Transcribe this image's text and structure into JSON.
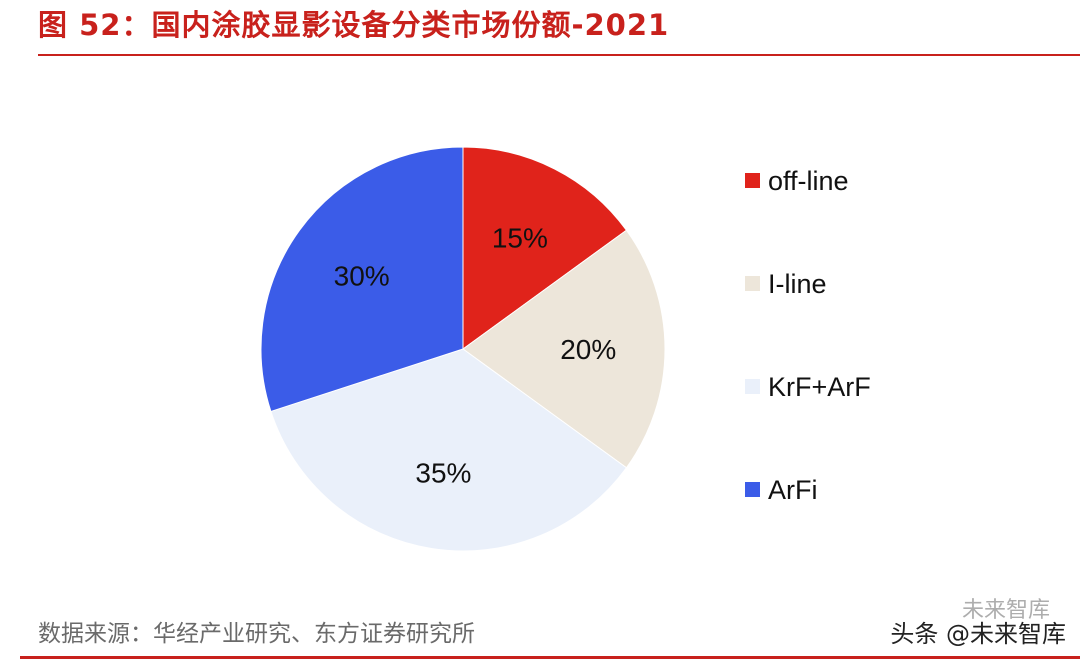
{
  "title": "图 52：国内涂胶显影设备分类市场份额-2021",
  "source": "数据来源：华经产业研究、东方证券研究所",
  "watermark": {
    "main": "头条 @未来智库",
    "faint": "未来智库"
  },
  "chart_data": {
    "type": "pie",
    "title": "图 52：国内涂胶显影设备分类市场份额-2021",
    "labels": [
      "off-line",
      "I-line",
      "KrF+ArF",
      "ArFi"
    ],
    "values": [
      15,
      20,
      35,
      30
    ],
    "value_labels": [
      "15%",
      "20%",
      "35%",
      "30%"
    ],
    "colors": [
      "#e0231b",
      "#ede6da",
      "#eaf0fa",
      "#3b5ce8"
    ],
    "start_angle": "12 o'clock",
    "direction": "clockwise",
    "legend_position": "right"
  }
}
